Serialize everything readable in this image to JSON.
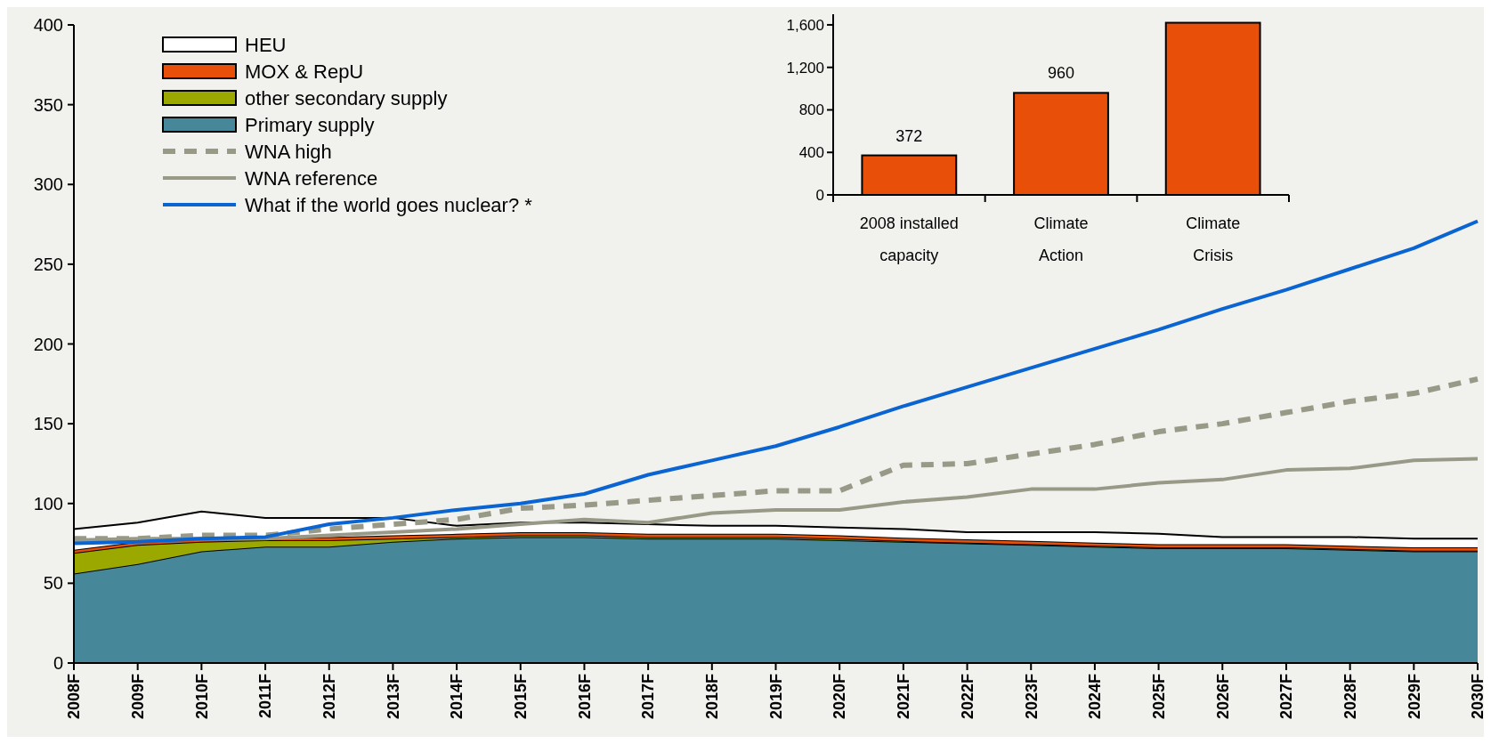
{
  "chart_data": [
    {
      "type": "area",
      "stacked": true,
      "legend": "top left",
      "categories": [
        "2008F",
        "2009F",
        "2010F",
        "2011F",
        "2012F",
        "2013F",
        "2014F",
        "2015F",
        "2016F",
        "2017F",
        "2018F",
        "2019F",
        "2020F",
        "2021F",
        "2022F",
        "2023F",
        "2024F",
        "2025F",
        "2026F",
        "2027F",
        "2028F",
        "2029F",
        "2030F"
      ],
      "ylim": [
        0,
        400
      ],
      "yticks": [
        0,
        50,
        100,
        150,
        200,
        250,
        300,
        350,
        400
      ],
      "series": [
        {
          "name": "Primary supply",
          "color": "#46889a",
          "values": [
            56,
            62,
            70,
            73,
            73,
            76,
            78,
            79,
            79,
            78,
            78,
            78,
            77,
            76,
            75,
            74,
            73,
            72,
            72,
            72,
            71,
            70,
            70
          ]
        },
        {
          "name": "other secondary supply",
          "color": "#9aa800",
          "values": [
            13,
            12,
            6,
            4,
            4,
            2,
            1,
            1,
            1,
            1,
            1,
            1,
            1,
            0.5,
            0.5,
            0.5,
            0.5,
            0.5,
            0.5,
            0.5,
            0.5,
            0.5,
            0.5
          ]
        },
        {
          "name": "MOX & RepU",
          "color": "#e8500a",
          "values": [
            2,
            2,
            2,
            2,
            2,
            2,
            2,
            2,
            2,
            2,
            2,
            2,
            2,
            2,
            2,
            2,
            2,
            2,
            2,
            2,
            2,
            2,
            2
          ]
        },
        {
          "name": "HEU",
          "color": "#ffffff",
          "values": [
            13,
            12,
            17,
            12,
            12,
            11,
            5,
            6,
            6,
            6,
            5,
            5,
            5,
            5.5,
            4.5,
            5.5,
            6.5,
            6.5,
            4.5,
            4.5,
            5.5,
            5.5,
            5.5
          ]
        },
        {
          "name": "WNA high",
          "type": "line",
          "line_style": "dashed",
          "color": "#999988",
          "values": [
            78,
            78,
            80,
            80,
            84,
            87,
            90,
            97,
            99,
            102,
            105,
            108,
            108,
            124,
            125,
            131,
            137,
            145,
            150,
            157,
            164,
            169,
            178
          ]
        },
        {
          "name": "WNA reference",
          "type": "line",
          "line_style": "solid",
          "color": "#999988",
          "values": [
            77,
            78,
            78,
            78,
            80,
            82,
            84,
            87,
            90,
            88,
            94,
            96,
            96,
            101,
            104,
            109,
            109,
            113,
            115,
            121,
            122,
            127,
            128
          ]
        },
        {
          "name": "What if the world goes nuclear? *",
          "type": "line",
          "line_style": "solid",
          "color": "#0a64d2",
          "values": [
            75,
            76,
            78,
            79,
            87,
            91,
            96,
            100,
            106,
            118,
            127,
            136,
            148,
            161,
            173,
            185,
            197,
            209,
            222,
            234,
            247,
            260,
            277
          ]
        }
      ]
    },
    {
      "type": "bar",
      "categories": [
        "2008 installed capacity",
        "Climate Action",
        "Climate Crisis"
      ],
      "values": [
        372,
        960,
        1620
      ],
      "value_labels": [
        "372",
        "960",
        null
      ],
      "color": "#e8500a",
      "ylim": [
        0,
        1700
      ],
      "yticks": [
        0,
        400,
        800,
        {
          "value": 1200,
          "label": "1,200"
        },
        {
          "value": 1600,
          "label": "1,600"
        }
      ]
    }
  ]
}
